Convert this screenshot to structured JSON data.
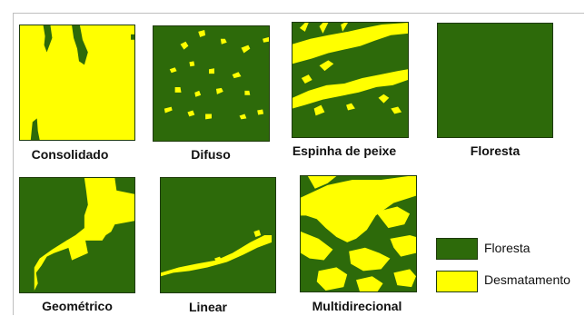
{
  "colors": {
    "forest": "#2d6a0a",
    "deforestation": "#ffff00",
    "border": "#1e3a0a"
  },
  "patterns": [
    {
      "id": "consolidado",
      "label": "Consolidado",
      "background": "deforestation"
    },
    {
      "id": "difuso",
      "label": "Difuso",
      "background": "forest"
    },
    {
      "id": "espinha",
      "label": "Espinha de peixe",
      "background": "forest"
    },
    {
      "id": "floresta",
      "label": "Floresta",
      "background": "forest"
    },
    {
      "id": "geometrico",
      "label": "Geométrico",
      "background": "forest"
    },
    {
      "id": "linear",
      "label": "Linear",
      "background": "forest"
    },
    {
      "id": "multidirecional",
      "label": "Multidirecional",
      "background": "forest"
    }
  ],
  "legend": [
    {
      "label": "Floresta",
      "color": "forest"
    },
    {
      "label": "Desmatamento",
      "color": "deforestation"
    }
  ]
}
